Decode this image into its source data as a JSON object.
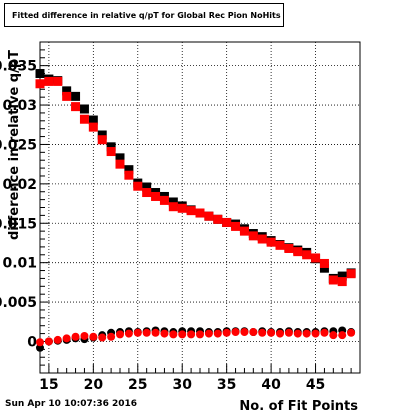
{
  "title": "Fitted difference in relative q/pT for Global Rec Pion NoHits",
  "timestamp": "Sun Apr 10 10:07:36 2016",
  "colors": {
    "series_black": "#000000",
    "series_red": "#ff0000",
    "grid": "#000000"
  },
  "chart_data": {
    "type": "scatter",
    "title": "Fitted difference in relative q/pT for Global Rec Pion NoHits",
    "xlabel": "No. of Fit Points",
    "ylabel": "difference in relative q/pT",
    "xlim": [
      14,
      50
    ],
    "ylim": [
      -0.004,
      0.038
    ],
    "xticks": [
      15,
      20,
      25,
      30,
      35,
      40,
      45
    ],
    "xtick_labels": [
      "15",
      "20",
      "25",
      "30",
      "35",
      "40",
      "45"
    ],
    "yticks": [
      0,
      0.005,
      0.01,
      0.015,
      0.02,
      0.025,
      0.03,
      0.035
    ],
    "ytick_labels": [
      "0",
      "0.005",
      "0.01",
      "0.015",
      "0.02",
      "0.025",
      "0.03",
      "0.035"
    ],
    "grid": true,
    "x": [
      14,
      15,
      16,
      17,
      18,
      19,
      20,
      21,
      22,
      23,
      24,
      25,
      26,
      27,
      28,
      29,
      30,
      31,
      32,
      33,
      34,
      35,
      36,
      37,
      38,
      39,
      40,
      41,
      42,
      43,
      44,
      45,
      46,
      47,
      48,
      49
    ],
    "series": [
      {
        "marker": "square",
        "color": "#000000",
        "values": [
          0.034,
          0.0333,
          0.0331,
          0.0318,
          0.0311,
          0.0295,
          0.0281,
          0.0262,
          0.0247,
          0.0233,
          0.0218,
          0.0201,
          0.0196,
          0.0189,
          0.0184,
          0.0177,
          0.0172,
          0.0167,
          0.0163,
          0.0159,
          0.0155,
          0.0151,
          0.0149,
          0.0143,
          0.0137,
          0.0133,
          0.0128,
          0.0123,
          0.0119,
          0.0116,
          0.0113,
          0.0105,
          0.0093,
          0.008,
          0.0083,
          0.0087
        ]
      },
      {
        "marker": "square",
        "color": "#ff0000",
        "values": [
          0.0327,
          0.033,
          0.033,
          0.0311,
          0.0298,
          0.0282,
          0.0272,
          0.0256,
          0.0241,
          0.0225,
          0.0211,
          0.0197,
          0.0189,
          0.0184,
          0.0179,
          0.0171,
          0.0169,
          0.0166,
          0.0163,
          0.0159,
          0.0155,
          0.0151,
          0.0146,
          0.014,
          0.0134,
          0.013,
          0.0126,
          0.0122,
          0.0118,
          0.0114,
          0.011,
          0.0106,
          0.0099,
          0.0078,
          0.0076,
          0.0086
        ]
      },
      {
        "marker": "circle",
        "color": "#000000",
        "values": [
          -0.0008,
          0.0,
          0.0001,
          0.0002,
          0.0004,
          0.0003,
          0.0005,
          0.0008,
          0.0011,
          0.0012,
          0.0013,
          0.0012,
          0.0013,
          0.0014,
          0.0013,
          0.0012,
          0.0013,
          0.0013,
          0.0013,
          0.0012,
          0.0012,
          0.0013,
          0.0013,
          0.0013,
          0.0012,
          0.0013,
          0.0012,
          0.0012,
          0.0013,
          0.0012,
          0.0012,
          0.0012,
          0.0013,
          0.0013,
          0.0014,
          0.0012
        ]
      },
      {
        "marker": "circle",
        "color": "#ff0000",
        "values": [
          -0.0001,
          0.0,
          0.0002,
          0.0004,
          0.0006,
          0.0007,
          0.0006,
          0.0005,
          0.0006,
          0.0009,
          0.001,
          0.0011,
          0.0011,
          0.0011,
          0.001,
          0.0009,
          0.0009,
          0.0009,
          0.0009,
          0.001,
          0.001,
          0.0011,
          0.0012,
          0.0012,
          0.0012,
          0.0011,
          0.0011,
          0.001,
          0.0011,
          0.001,
          0.001,
          0.001,
          0.0011,
          0.0008,
          0.0008,
          0.0011
        ]
      }
    ]
  }
}
